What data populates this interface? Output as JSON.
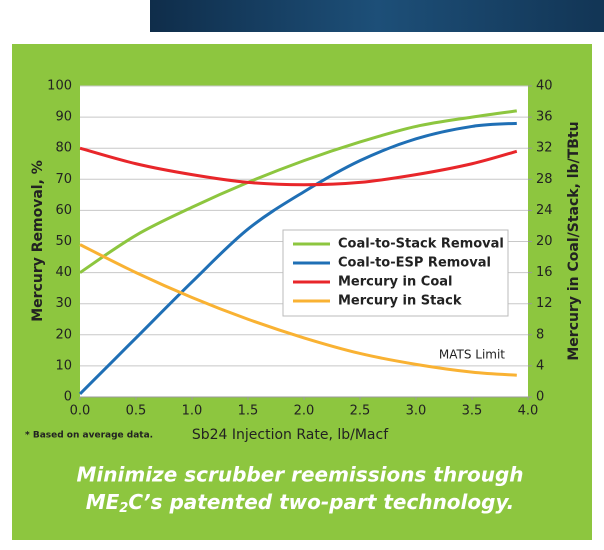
{
  "chart_data": {
    "type": "line",
    "y_label": "Mercury Removal, %",
    "y2_label": "Mercury  in Coal/Stack, lb/TBtu",
    "x_label": "Sb24 Injection Rate, lb/Macf",
    "footnote": "* Based on average data.",
    "annotation": "MATS Limit",
    "subtitle": [
      "Minimize scrubber reemissions through",
      "ME",
      "2",
      "C’s patented two-part technology."
    ],
    "x": [
      0,
      0.5,
      1,
      1.5,
      2,
      2.5,
      3,
      3.5,
      3.9
    ],
    "series": [
      {
        "name": "Coal-to-Stack Removal",
        "color": "#8dc63f",
        "values": [
          40,
          52,
          61,
          69,
          76,
          82,
          87,
          90,
          92
        ]
      },
      {
        "name": "Coal-to-ESP Removal",
        "color": "#1f6fb5",
        "values": [
          1,
          19,
          37,
          54,
          66,
          76,
          83,
          87,
          88
        ]
      },
      {
        "name": "Mercury in Coal",
        "color": "#e8262a",
        "axis": "y2",
        "values": [
          32,
          30,
          28.6,
          27.6,
          27.3,
          27.6,
          28.6,
          30,
          31.6
        ]
      },
      {
        "name": "Mercury in Stack",
        "color": "#f9b233",
        "axis": "y2",
        "values": [
          19.6,
          16,
          12.8,
          10,
          7.6,
          5.6,
          4.2,
          3.2,
          2.8
        ]
      }
    ],
    "xlim": [
      0,
      4
    ],
    "xticks": [
      {
        "value": 0,
        "label": "0.0"
      },
      0.5,
      {
        "value": 1,
        "label": "1.0"
      },
      1.5,
      {
        "value": 2,
        "label": "2.0"
      },
      2.5,
      {
        "value": 3,
        "label": "3.0"
      },
      3.5,
      {
        "value": 4,
        "label": "4.0"
      }
    ],
    "ylim": [
      0,
      100
    ],
    "yticks": [
      0,
      10,
      20,
      30,
      40,
      50,
      60,
      70,
      80,
      90,
      100
    ],
    "y2lim": [
      0,
      40
    ],
    "y2ticks": [
      0,
      4,
      8,
      12,
      16,
      20,
      24,
      28,
      32,
      36,
      40
    ],
    "grid": true
  }
}
